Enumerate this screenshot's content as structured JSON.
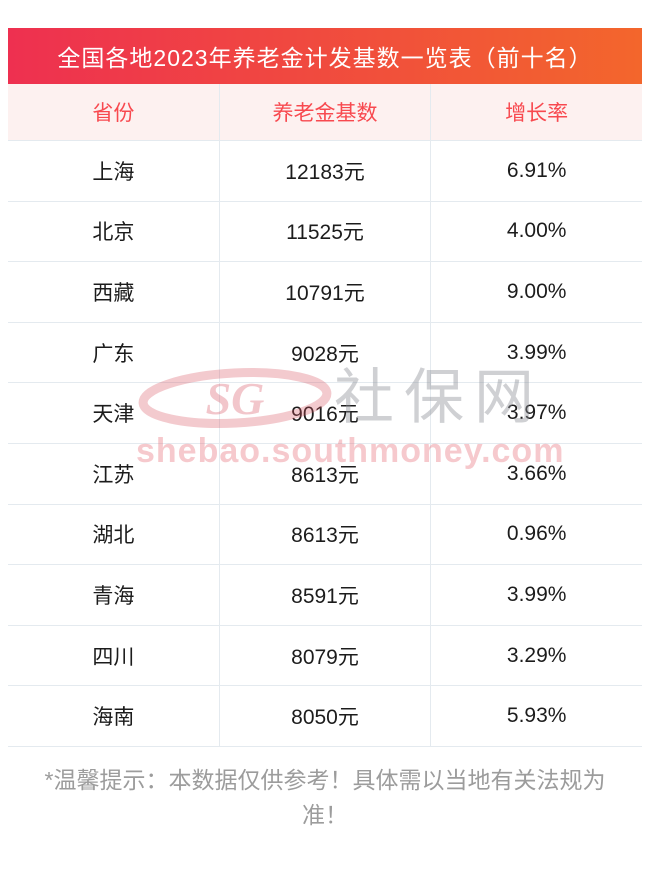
{
  "title": "全国各地2023年养老金计发基数一览表（前十名）",
  "chart_data": {
    "type": "table",
    "title": "全国各地2023年养老金计发基数一览表（前十名）",
    "columns": [
      "省份",
      "养老金基数",
      "增长率"
    ],
    "rows": [
      [
        "上海",
        "12183元",
        "6.91%"
      ],
      [
        "北京",
        "11525元",
        "4.00%"
      ],
      [
        "西藏",
        "10791元",
        "9.00%"
      ],
      [
        "广东",
        "9028元",
        "3.99%"
      ],
      [
        "天津",
        "9016元",
        "3.97%"
      ],
      [
        "江苏",
        "8613元",
        "3.66%"
      ],
      [
        "湖北",
        "8613元",
        "0.96%"
      ],
      [
        "青海",
        "8591元",
        "3.99%"
      ],
      [
        "四川",
        "8079元",
        "3.29%"
      ],
      [
        "海南",
        "8050元",
        "5.93%"
      ]
    ]
  },
  "watermark": {
    "logo_text": "SG",
    "site_name": "社保网",
    "url": "shebao.southmoney.com"
  },
  "footer": {
    "note": "*温馨提示：本数据仅供参考！具体需以当地有关法规为准！"
  },
  "colors": {
    "title_gradient_start": "#ee3050",
    "title_gradient_end": "#f3662c",
    "header_bg": "#fdf1f0",
    "header_text": "#f8494f",
    "row_divider": "#e4eaef",
    "body_text": "#1c1c1c",
    "footer_text": "#9c9c9c",
    "watermark_pink": "#e7707c",
    "watermark_gray": "#8c8e96"
  }
}
